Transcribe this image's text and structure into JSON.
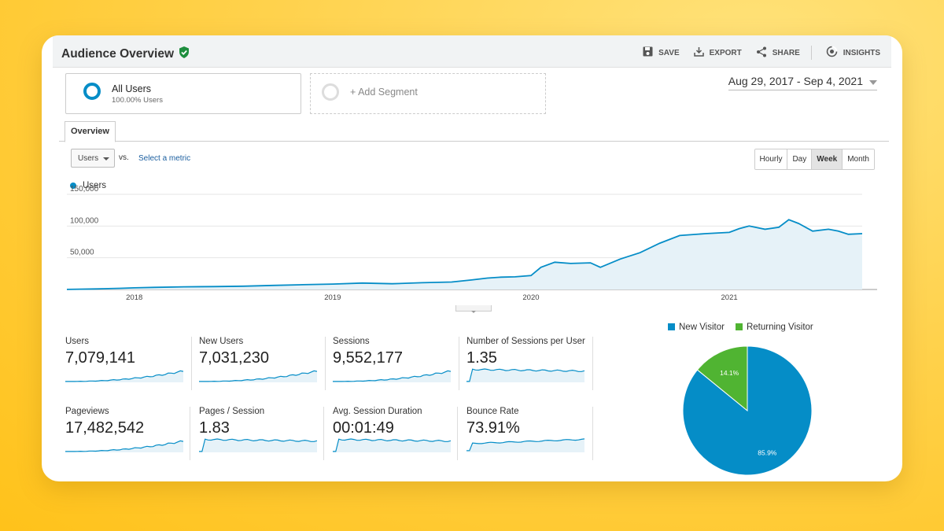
{
  "header": {
    "title": "Audience Overview",
    "actions": {
      "save": "SAVE",
      "export": "EXPORT",
      "share": "SHARE",
      "insights": "INSIGHTS"
    }
  },
  "segments": {
    "all_users": {
      "name": "All Users",
      "subtitle": "100.00% Users"
    },
    "add_label": "+ Add Segment"
  },
  "date_range": "Aug 29, 2017 - Sep 4, 2021",
  "tab": "Overview",
  "controls": {
    "metric": "Users",
    "vs": "vs.",
    "select_metric": "Select a metric",
    "granularity": [
      "Hourly",
      "Day",
      "Week",
      "Month"
    ],
    "active_granularity": "Week"
  },
  "colors": {
    "accent": "#058dc7",
    "green": "#50b432",
    "fill": "#e6f2f8"
  },
  "chart_data": [
    {
      "type": "area",
      "title": "Users",
      "legend": "Users",
      "y_ticks": [
        "150,000",
        "100,000",
        "50,000"
      ],
      "y_tick_values": [
        150000,
        100000,
        50000
      ],
      "ylim": [
        0,
        150000
      ],
      "x_tick_labels": [
        "2018",
        "2019",
        "2020",
        "2021"
      ],
      "x_tick_positions": [
        2018,
        2019,
        2020,
        2021
      ],
      "xlim": [
        2017.66,
        2021.67
      ],
      "series": [
        {
          "name": "Users",
          "points": [
            [
              2017.66,
              100
            ],
            [
              2017.8,
              900
            ],
            [
              2017.93,
              1800
            ],
            [
              2018.0,
              2600
            ],
            [
              2018.1,
              3400
            ],
            [
              2018.25,
              4200
            ],
            [
              2018.4,
              4600
            ],
            [
              2018.55,
              5200
            ],
            [
              2018.7,
              6400
            ],
            [
              2018.85,
              7500
            ],
            [
              2019.0,
              8600
            ],
            [
              2019.15,
              10200
            ],
            [
              2019.3,
              9000
            ],
            [
              2019.45,
              10600
            ],
            [
              2019.6,
              11800
            ],
            [
              2019.7,
              15000
            ],
            [
              2019.78,
              18000
            ],
            [
              2019.85,
              19500
            ],
            [
              2019.92,
              20000
            ],
            [
              2020.0,
              22000
            ],
            [
              2020.05,
              35000
            ],
            [
              2020.12,
              43000
            ],
            [
              2020.2,
              41000
            ],
            [
              2020.3,
              42000
            ],
            [
              2020.35,
              35000
            ],
            [
              2020.45,
              48000
            ],
            [
              2020.55,
              58000
            ],
            [
              2020.65,
              73000
            ],
            [
              2020.75,
              85000
            ],
            [
              2020.88,
              88000
            ],
            [
              2021.0,
              90000
            ],
            [
              2021.05,
              96000
            ],
            [
              2021.1,
              100000
            ],
            [
              2021.18,
              95000
            ],
            [
              2021.25,
              98000
            ],
            [
              2021.3,
              110000
            ],
            [
              2021.35,
              104000
            ],
            [
              2021.42,
              92000
            ],
            [
              2021.5,
              95000
            ],
            [
              2021.55,
              92000
            ],
            [
              2021.6,
              87000
            ],
            [
              2021.67,
              88000
            ]
          ]
        }
      ]
    },
    {
      "type": "pie",
      "legend": [
        "New Visitor",
        "Returning Visitor"
      ],
      "values": [
        85.9,
        14.1
      ],
      "labels": [
        "85.9%",
        "14.1%"
      ]
    }
  ],
  "metrics": [
    {
      "label": "Users",
      "value": "7,079,141",
      "shape": "growth"
    },
    {
      "label": "New Users",
      "value": "7,031,230",
      "shape": "growth"
    },
    {
      "label": "Sessions",
      "value": "9,552,177",
      "shape": "growth"
    },
    {
      "label": "Number of Sessions per User",
      "value": "1.35",
      "shape": "step"
    },
    {
      "label": "Pageviews",
      "value": "17,482,542",
      "shape": "growth"
    },
    {
      "label": "Pages / Session",
      "value": "1.83",
      "shape": "step"
    },
    {
      "label": "Avg. Session Duration",
      "value": "00:01:49",
      "shape": "step"
    },
    {
      "label": "Bounce Rate",
      "value": "73.91%",
      "shape": "rise"
    }
  ]
}
